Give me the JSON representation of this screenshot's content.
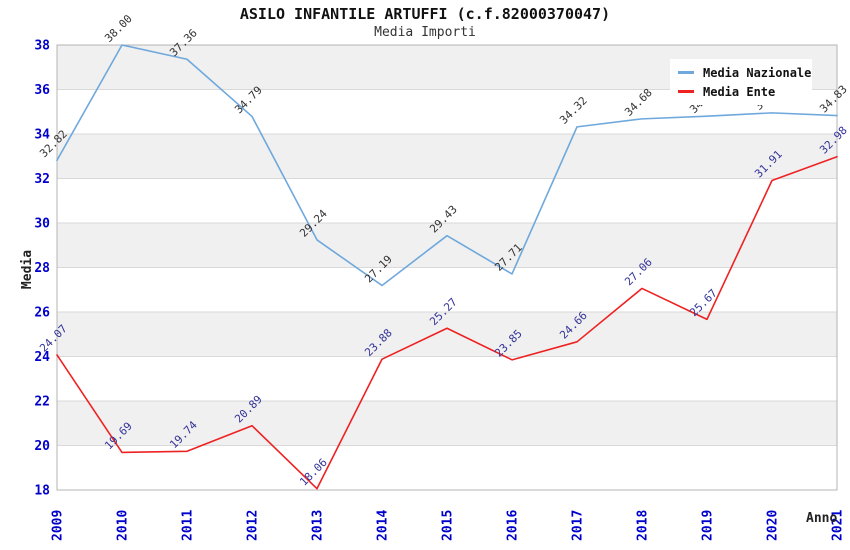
{
  "chart_data": {
    "type": "line",
    "title": "ASILO INFANTILE ARTUFFI (c.f.82000370047)",
    "subtitle": "Media Importi",
    "xlabel": "Anno",
    "ylabel": "Media",
    "x": [
      "2009",
      "2010",
      "2011",
      "2012",
      "2013",
      "2014",
      "2015",
      "2016",
      "2017",
      "2018",
      "2019",
      "2020",
      "2021"
    ],
    "ylim": [
      18,
      38
    ],
    "ytick_step": 2,
    "grid": true,
    "gray_bands": [
      [
        36,
        38
      ],
      [
        32,
        34
      ],
      [
        28,
        30
      ],
      [
        24,
        26
      ],
      [
        20,
        22
      ]
    ],
    "legend_position": "top-right",
    "series": [
      {
        "name": "Media Nazionale",
        "color": "#6fa8dc",
        "label_color": "#333333",
        "values": [
          32.82,
          38.0,
          37.36,
          34.79,
          29.24,
          27.19,
          29.43,
          27.71,
          34.32,
          34.68,
          34.8,
          34.95,
          34.83
        ]
      },
      {
        "name": "Media Ente",
        "color": "#ee2222",
        "label_color": "#333399",
        "values": [
          24.07,
          19.69,
          19.74,
          20.89,
          18.06,
          23.88,
          25.27,
          23.85,
          24.66,
          27.06,
          25.67,
          31.91,
          32.98
        ]
      }
    ]
  },
  "colors": {
    "tick_label": "#0000cc",
    "point_label_national": "#333333",
    "point_label_ente": "#333399",
    "band_fill": "#f0f0f0",
    "grid_line": "#d9d9d9",
    "plot_border": "#b5b5b5",
    "background": "#ffffff",
    "legend_background": "#ffffff"
  }
}
